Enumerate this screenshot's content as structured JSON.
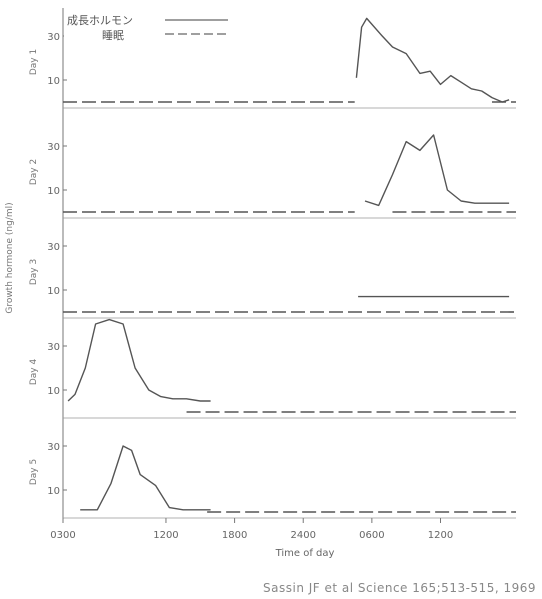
{
  "chart_data": {
    "type": "line",
    "xlabel": "Time of day",
    "ylabel": "Growth hormone (ng/ml)",
    "x_ticks": [
      {
        "value": 0,
        "label": "0300"
      },
      {
        "value": 3,
        "label": "1200"
      },
      {
        "value": 5,
        "label": "1800"
      },
      {
        "value": 7,
        "label": "2400"
      },
      {
        "value": 9,
        "label": "0600"
      },
      {
        "value": 11,
        "label": "1200"
      }
    ],
    "xlim": [
      0,
      13.2
    ],
    "legend": {
      "position": "top-left",
      "entries": [
        {
          "label": "成長ホルモン",
          "style": "solid"
        },
        {
          "label": "睡眠",
          "style": "dashed"
        }
      ]
    },
    "panels": [
      {
        "label": "Day 1",
        "ylim": [
          0,
          40
        ],
        "ytick_labels": [
          "10",
          "30"
        ],
        "sleep_y": 0,
        "series": [
          {
            "name": "成長ホルモン",
            "x": [
              8.55,
              8.7,
              8.85,
              9.3,
              9.6,
              10.0,
              10.4,
              10.7,
              11.0,
              11.3,
              11.6,
              11.9,
              12.2,
              12.5,
              12.8,
              13.0
            ],
            "y": [
              11,
              34,
              38,
              30,
              25,
              22,
              13,
              14,
              8,
              12,
              9,
              6,
              5,
              2,
              0,
              1
            ]
          }
        ],
        "sleep": [
          [
            0,
            8.5
          ],
          [
            12.5,
            13.2
          ]
        ]
      },
      {
        "label": "Day 2",
        "ylim": [
          0,
          40
        ],
        "ytick_labels": [
          "10",
          "30"
        ],
        "sleep_y": 0,
        "series": [
          {
            "name": "成長ホルモン",
            "x": [
              8.8,
              9.2,
              9.6,
              10.0,
              10.4,
              10.8,
              11.2,
              11.6,
              12.0,
              12.5,
              13.0
            ],
            "y": [
              5,
              3,
              17,
              32,
              28,
              35,
              10,
              5,
              4,
              4,
              4
            ]
          }
        ],
        "sleep": [
          [
            0,
            8.5
          ],
          [
            9.6,
            13.2
          ]
        ]
      },
      {
        "label": "Day 3",
        "ylim": [
          0,
          40
        ],
        "ytick_labels": [
          "10",
          "30"
        ],
        "sleep_y": 0,
        "series": [
          {
            "name": "成長ホルモン",
            "x": [
              8.6,
              9.5,
              10.5,
              11.5,
              12.5,
              13.0
            ],
            "y": [
              7,
              7,
              7,
              7,
              7,
              7
            ]
          }
        ],
        "sleep": [
          [
            0,
            13.2
          ]
        ]
      },
      {
        "label": "Day 4",
        "ylim": [
          0,
          40
        ],
        "ytick_labels": [
          "10",
          "30"
        ],
        "sleep_y": 0,
        "series": [
          {
            "name": "成長ホルモン",
            "x": [
              0.15,
              0.35,
              0.65,
              0.95,
              1.35,
              1.75,
              2.1,
              2.5,
              2.85,
              3.2,
              3.6,
              4.0,
              4.3
            ],
            "y": [
              5,
              8,
              20,
              40,
              42,
              40,
              20,
              10,
              7,
              6,
              6,
              5,
              5
            ]
          }
        ],
        "sleep": [
          [
            3.6,
            13.2
          ]
        ]
      },
      {
        "label": "Day 5",
        "ylim": [
          0,
          40
        ],
        "ytick_labels": [
          "10",
          "30"
        ],
        "sleep_y": 0,
        "series": [
          {
            "name": "成長ホルモン",
            "x": [
              0.5,
              1.0,
              1.4,
              1.75,
              2.0,
              2.25,
              2.7,
              3.1,
              3.5,
              4.0,
              4.3
            ],
            "y": [
              1,
              1,
              13,
              30,
              28,
              17,
              12,
              2,
              1,
              1,
              1
            ]
          }
        ],
        "sleep": [
          [
            4.2,
            13.2
          ]
        ]
      }
    ]
  },
  "citation": "Sassin JF et al Science 165;513-515, 1969"
}
